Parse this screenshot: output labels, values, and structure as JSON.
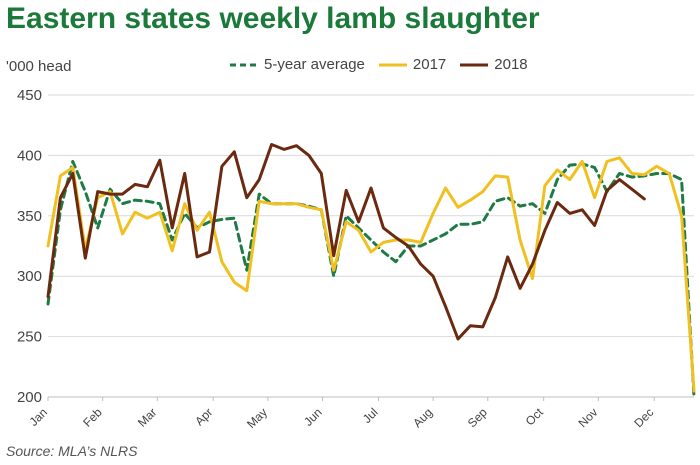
{
  "title": "Eastern states weekly lamb slaughter",
  "unit_label": "'000 head",
  "source": "Source: MLA’s NLRS",
  "colors": {
    "avg": "#1f7a45",
    "y2017": "#f0c020",
    "y2018": "#6b2a10",
    "grid": "#d9d9d9"
  },
  "chart_data": {
    "type": "line",
    "ylim": [
      200,
      450
    ],
    "yticks": [
      200,
      250,
      300,
      350,
      400,
      450
    ],
    "xlim": [
      1,
      53
    ],
    "month_labels": [
      "Jan",
      "Feb",
      "Mar",
      "Apr",
      "May",
      "Jun",
      "Jul",
      "Aug",
      "Sep",
      "Oct",
      "Nov",
      "Dec"
    ],
    "month_weeks": [
      1,
      5.4,
      9.8,
      14.3,
      18.7,
      23.1,
      27.6,
      32.0,
      36.4,
      40.9,
      45.3,
      49.8
    ],
    "grid": "horizontal",
    "legend_position": "top",
    "series": [
      {
        "name": "5-year average",
        "style": "dashed",
        "color": "#1f7a45",
        "values": [
          277,
          355,
          395,
          370,
          340,
          372,
          360,
          363,
          362,
          360,
          330,
          352,
          340,
          345,
          347,
          348,
          305,
          368,
          360,
          360,
          360,
          358,
          355,
          300,
          350,
          340,
          330,
          320,
          312,
          325,
          325,
          330,
          335,
          343,
          343,
          345,
          362,
          365,
          358,
          360,
          352,
          380,
          392,
          393,
          390,
          370,
          385,
          382,
          383,
          385,
          385,
          380,
          200
        ]
      },
      {
        "name": "2017",
        "style": "solid",
        "color": "#f0c020",
        "values": [
          325,
          383,
          390,
          322,
          365,
          370,
          335,
          353,
          348,
          353,
          321,
          360,
          338,
          353,
          312,
          295,
          288,
          362,
          360,
          360,
          360,
          357,
          355,
          305,
          345,
          338,
          320,
          328,
          330,
          330,
          328,
          352,
          373,
          357,
          363,
          370,
          383,
          382,
          330,
          298,
          375,
          388,
          380,
          395,
          365,
          395,
          398,
          385,
          384,
          391,
          385,
          350,
          205
        ]
      },
      {
        "name": "2018",
        "style": "solid",
        "color": "#6b2a10",
        "values": [
          283,
          365,
          385,
          315,
          370,
          368,
          368,
          376,
          374,
          396,
          340,
          385,
          316,
          320,
          391,
          403,
          365,
          380,
          409,
          405,
          408,
          400,
          385,
          317,
          371,
          345,
          373,
          340,
          332,
          325,
          310,
          300,
          275,
          248,
          259,
          258,
          282,
          316,
          290,
          310,
          338,
          361,
          352,
          355,
          342,
          371,
          380,
          372,
          364
        ]
      }
    ]
  }
}
